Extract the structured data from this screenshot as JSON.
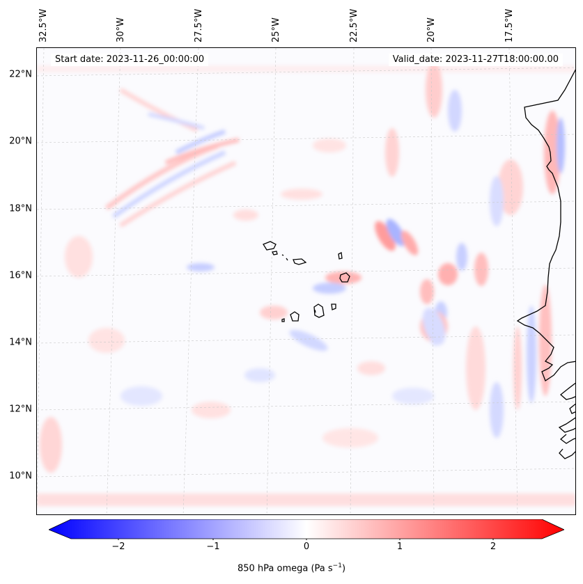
{
  "header": {
    "start_date": "Start date: 2023-11-26_00:00:00",
    "valid_date": "Valid_date: 2023-11-27T18:00:00.00"
  },
  "axes": {
    "lon_labels": [
      "32.5°W",
      "30°W",
      "27.5°W",
      "25°W",
      "22.5°W",
      "20°W",
      "17.5°W"
    ],
    "lat_labels": [
      "22°N",
      "20°N",
      "18°N",
      "16°N",
      "14°N",
      "12°N",
      "10°N"
    ]
  },
  "colorbar": {
    "ticks": [
      "−2",
      "−1",
      "0",
      "1",
      "2"
    ],
    "tick_values": [
      -2,
      -1,
      0,
      1,
      2
    ],
    "range": [
      -2.5,
      2.5
    ],
    "label_main": "850 hPa omega (Pa s",
    "label_sup": "−1",
    "label_end": ")",
    "colors": {
      "min": "#0000ff",
      "mid": "#ffffff",
      "max": "#ff0000"
    }
  },
  "grid": {
    "visible": true,
    "style": "dashed"
  }
}
